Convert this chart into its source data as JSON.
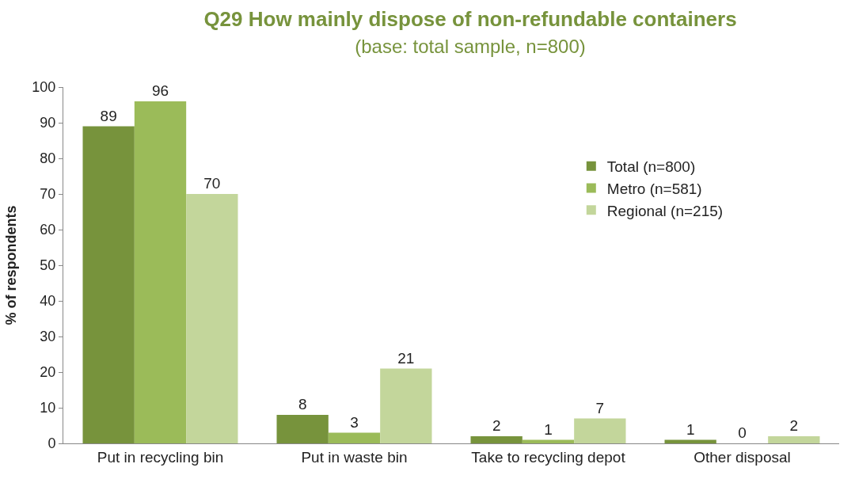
{
  "chart_data": {
    "type": "bar",
    "title": "Q29 How mainly dispose of non-refundable containers",
    "subtitle": "(base: total sample, n=800)",
    "ylabel": "% of respondents",
    "categories": [
      "Put in recycling bin",
      "Put in waste bin",
      "Take to recycling depot",
      "Other disposal"
    ],
    "series": [
      {
        "name": "Total (n=800)",
        "color": "#77933c",
        "values": [
          89,
          8,
          2,
          1
        ]
      },
      {
        "name": "Metro (n=581)",
        "color": "#9bbb59",
        "values": [
          96,
          3,
          1,
          0
        ]
      },
      {
        "name": "Regional (n=215)",
        "color": "#c3d69b",
        "values": [
          70,
          21,
          7,
          2
        ]
      }
    ],
    "ylim": [
      0,
      100
    ],
    "yticks": [
      0,
      10,
      20,
      30,
      40,
      50,
      60,
      70,
      80,
      90,
      100
    ],
    "legend": "right",
    "data_labels": true
  }
}
